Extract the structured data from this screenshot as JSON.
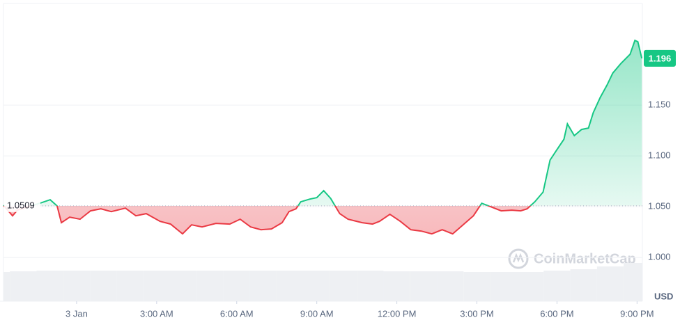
{
  "chart_data": {
    "type": "line",
    "x": [
      -2.74,
      -2.4,
      -2.22,
      -1.3,
      -0.99,
      -0.73,
      -0.57,
      -0.26,
      0.13,
      0.52,
      0.91,
      1.3,
      1.83,
      2.22,
      2.61,
      3.13,
      3.52,
      3.97,
      4.31,
      4.7,
      5.22,
      5.74,
      6.13,
      6.52,
      6.91,
      7.3,
      7.7,
      7.96,
      8.22,
      8.4,
      8.74,
      9.0,
      9.26,
      9.52,
      9.86,
      10.17,
      10.7,
      11.09,
      11.35,
      11.74,
      12.13,
      12.52,
      12.92,
      13.31,
      13.7,
      14.09,
      14.48,
      14.87,
      15.18,
      15.52,
      15.91,
      16.31,
      16.64,
      16.88,
      17.17,
      17.48,
      17.74,
      18.0,
      18.26,
      18.39,
      18.65,
      18.92,
      19.18,
      19.36,
      19.62,
      19.88,
      20.09,
      20.4,
      20.74,
      20.92,
      21.03,
      21.18
    ],
    "values": [
      1.0514,
      1.0411,
      1.0466,
      1.0541,
      1.0569,
      1.0507,
      1.0343,
      1.0397,
      1.0377,
      1.0459,
      1.0479,
      1.0452,
      1.0486,
      1.0411,
      1.0432,
      1.0356,
      1.0329,
      1.0233,
      1.0322,
      1.0301,
      1.0336,
      1.0329,
      1.0377,
      1.0301,
      1.0274,
      1.0281,
      1.0343,
      1.0452,
      1.0479,
      1.0548,
      1.0575,
      1.0589,
      1.0658,
      1.0582,
      1.0432,
      1.0377,
      1.0343,
      1.0329,
      1.0356,
      1.0425,
      1.0356,
      1.0274,
      1.026,
      1.0233,
      1.0274,
      1.0233,
      1.0322,
      1.0411,
      1.0534,
      1.05,
      1.0459,
      1.0466,
      1.0459,
      1.0479,
      1.0548,
      1.0644,
      1.0959,
      1.1062,
      1.1164,
      1.1315,
      1.1199,
      1.126,
      1.1274,
      1.1425,
      1.1575,
      1.1699,
      1.1815,
      1.1911,
      1.2,
      1.2137,
      1.2123,
      1.196
    ],
    "up_color": "#16c784",
    "down_color": "#ea3943",
    "baseline": 1.0509,
    "last_price": 1.196,
    "volume": {
      "x": [
        -3,
        -2,
        -1,
        0,
        1,
        2,
        3,
        4,
        5,
        6,
        7,
        8,
        9,
        10,
        11,
        12,
        13,
        14,
        15,
        16,
        17,
        18,
        19,
        20,
        21
      ],
      "values": [
        42,
        43,
        44,
        44,
        44,
        44,
        44,
        44,
        44,
        44,
        44,
        44,
        44,
        44,
        44,
        43,
        43,
        43,
        42,
        42,
        42,
        44,
        46,
        50,
        55
      ],
      "lim": [
        0,
        100
      ],
      "color": "#eef0f3"
    },
    "xlim": [
      -2.87,
      21.2
    ],
    "ylim": [
      0.957,
      1.25
    ],
    "xticks": [
      {
        "value": 0,
        "label": "3 Jan"
      },
      {
        "value": 3,
        "label": "3:00 AM"
      },
      {
        "value": 6,
        "label": "6:00 AM"
      },
      {
        "value": 9,
        "label": "9:00 AM"
      },
      {
        "value": 12,
        "label": "12:00 PM"
      },
      {
        "value": 15,
        "label": "3:00 PM"
      },
      {
        "value": 18,
        "label": "6:00 PM"
      },
      {
        "value": 21,
        "label": "9:00 PM"
      }
    ],
    "yticks": [
      {
        "value": 1.0,
        "label": "1.000"
      },
      {
        "value": 1.05,
        "label": "1.050"
      },
      {
        "value": 1.1,
        "label": "1.100"
      },
      {
        "value": 1.15,
        "label": "1.150"
      }
    ],
    "y_unit": "USD",
    "watermark": "CoinMarketCap",
    "grid": true
  }
}
